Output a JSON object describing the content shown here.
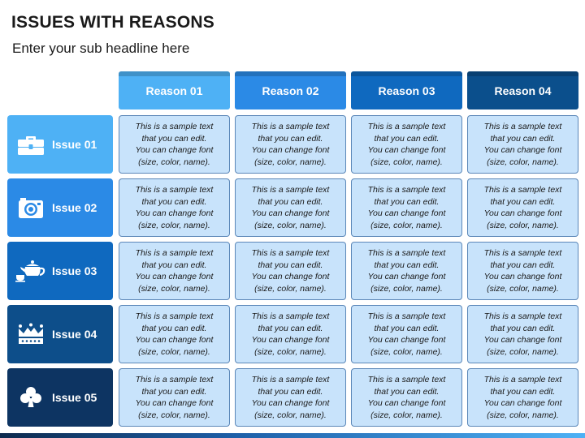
{
  "title": "ISSUES WITH REASONS",
  "subtitle": "Enter your sub headline here",
  "reasons": [
    {
      "label": "Reason 01",
      "color": "#4eb1f5"
    },
    {
      "label": "Reason 02",
      "color": "#2b8ae6"
    },
    {
      "label": "Reason 03",
      "color": "#0f69bf"
    },
    {
      "label": "Reason 04",
      "color": "#0b4f8c"
    }
  ],
  "issues": [
    {
      "label": "Issue 01",
      "icon": "briefcase-icon",
      "color": "#4eb1f5"
    },
    {
      "label": "Issue 02",
      "icon": "camera-icon",
      "color": "#2b8ae6"
    },
    {
      "label": "Issue 03",
      "icon": "teapot-icon",
      "color": "#0f69bf"
    },
    {
      "label": "Issue 04",
      "icon": "crown-icon",
      "color": "#0d4e8a"
    },
    {
      "label": "Issue 05",
      "icon": "club-icon",
      "color": "#0d3462"
    }
  ],
  "cell_text": "This is a sample text\nthat you can edit.\nYou can change font\n(size, color, name).",
  "cell_color": "#c8e3fb"
}
